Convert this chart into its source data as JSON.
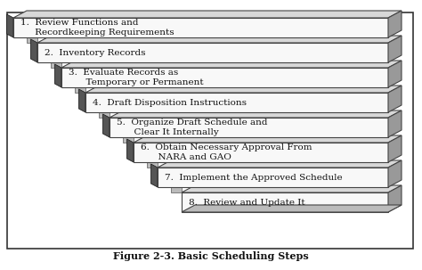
{
  "title": "Figure 2-3. Basic Scheduling Steps",
  "steps": [
    "1.  Review Functions and\n     Recordkeeping Requirements",
    "2.  Inventory Records",
    "3.  Evaluate Records as\n      Temporary or Permanent",
    "4.  Draft Disposition Instructions",
    "5.  Organize Draft Schedule and\n      Clear It Internally",
    "6.  Obtain Necessary Approval From\n      NARA and GAO",
    "7.  Implement the Approved Schedule",
    "8.  Review and Update It"
  ],
  "n_steps": 8,
  "face_color": "#f8f8f8",
  "top_color": "#d8d8d8",
  "side_color": "#999999",
  "left_connector_color": "#aaaaaa",
  "dark_spine_color": "#222222",
  "border_color": "#444444",
  "bg_color": "#ffffff",
  "text_color": "#111111",
  "title_fontsize": 8,
  "step_fontsize": 7.5
}
